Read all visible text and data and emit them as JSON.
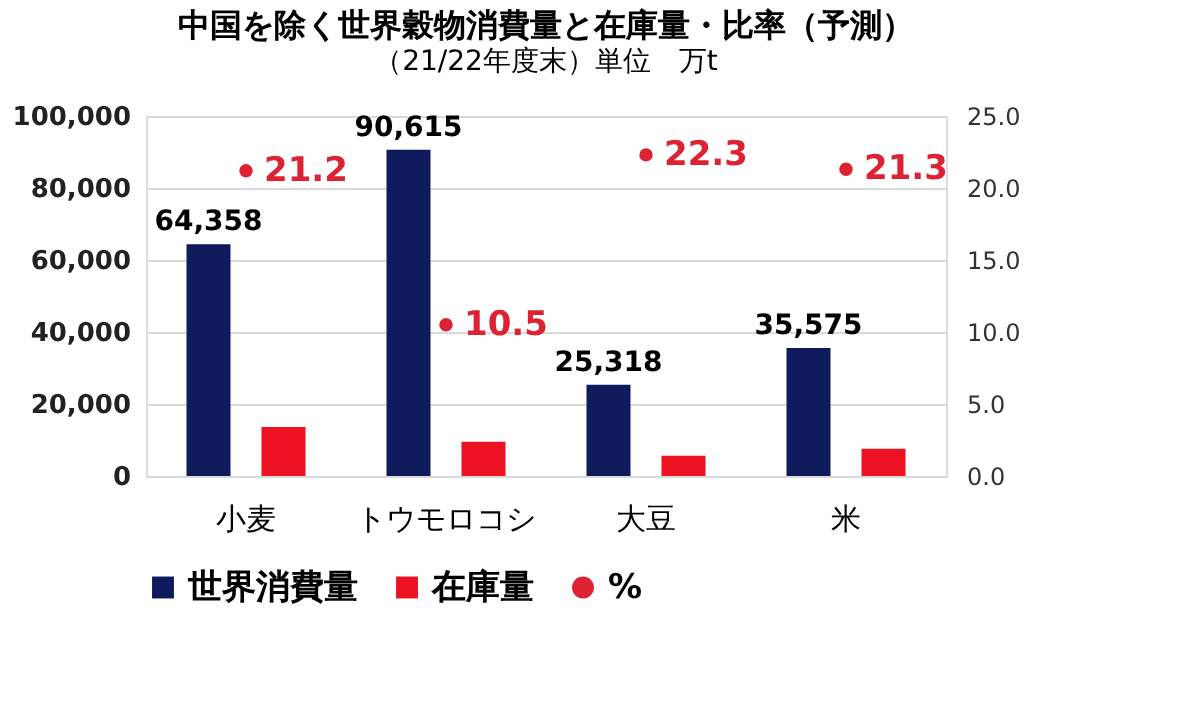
{
  "chart_data": {
    "type": "bar",
    "title": "中国を除く世界穀物消費量と在庫量・比率（予測）",
    "subtitle": "（21/22年度末）単位　万t",
    "categories": [
      "小麦",
      "トウモロコシ",
      "大豆",
      "米"
    ],
    "series": [
      {
        "name": "世界消費量",
        "color": "#0f1a5c",
        "values": [
          64358,
          90615,
          25318,
          35575
        ],
        "value_labels": [
          "64,358",
          "90,615",
          "25,318",
          "35,575"
        ]
      },
      {
        "name": "在庫量",
        "color": "#ee1122",
        "values": [
          13600,
          9500,
          5600,
          7600
        ]
      },
      {
        "name": "%",
        "type": "scatter",
        "axis": "y2",
        "color": "#dd2233",
        "values": [
          21.2,
          10.5,
          22.3,
          21.3
        ],
        "value_labels": [
          "21.2",
          "10.5",
          "22.3",
          "21.3"
        ]
      }
    ],
    "ylim": [
      0,
      100000
    ],
    "yticks": [
      {
        "value": 0,
        "label": "0"
      },
      {
        "value": 20000,
        "label": "20,000"
      },
      {
        "value": 40000,
        "label": "40,000"
      },
      {
        "value": 60000,
        "label": "60,000"
      },
      {
        "value": 80000,
        "label": "80,000"
      },
      {
        "value": 100000,
        "label": "100,000"
      }
    ],
    "y2lim": [
      0,
      25
    ],
    "y2ticks": [
      {
        "value": 0,
        "label": "0.0"
      },
      {
        "value": 5,
        "label": "5.0"
      },
      {
        "value": 10,
        "label": "10.0"
      },
      {
        "value": 15,
        "label": "15.0"
      },
      {
        "value": 20,
        "label": "20.0"
      },
      {
        "value": 25,
        "label": "25.0"
      }
    ],
    "grid": "y",
    "legend": "bottom",
    "marker": "circle"
  }
}
